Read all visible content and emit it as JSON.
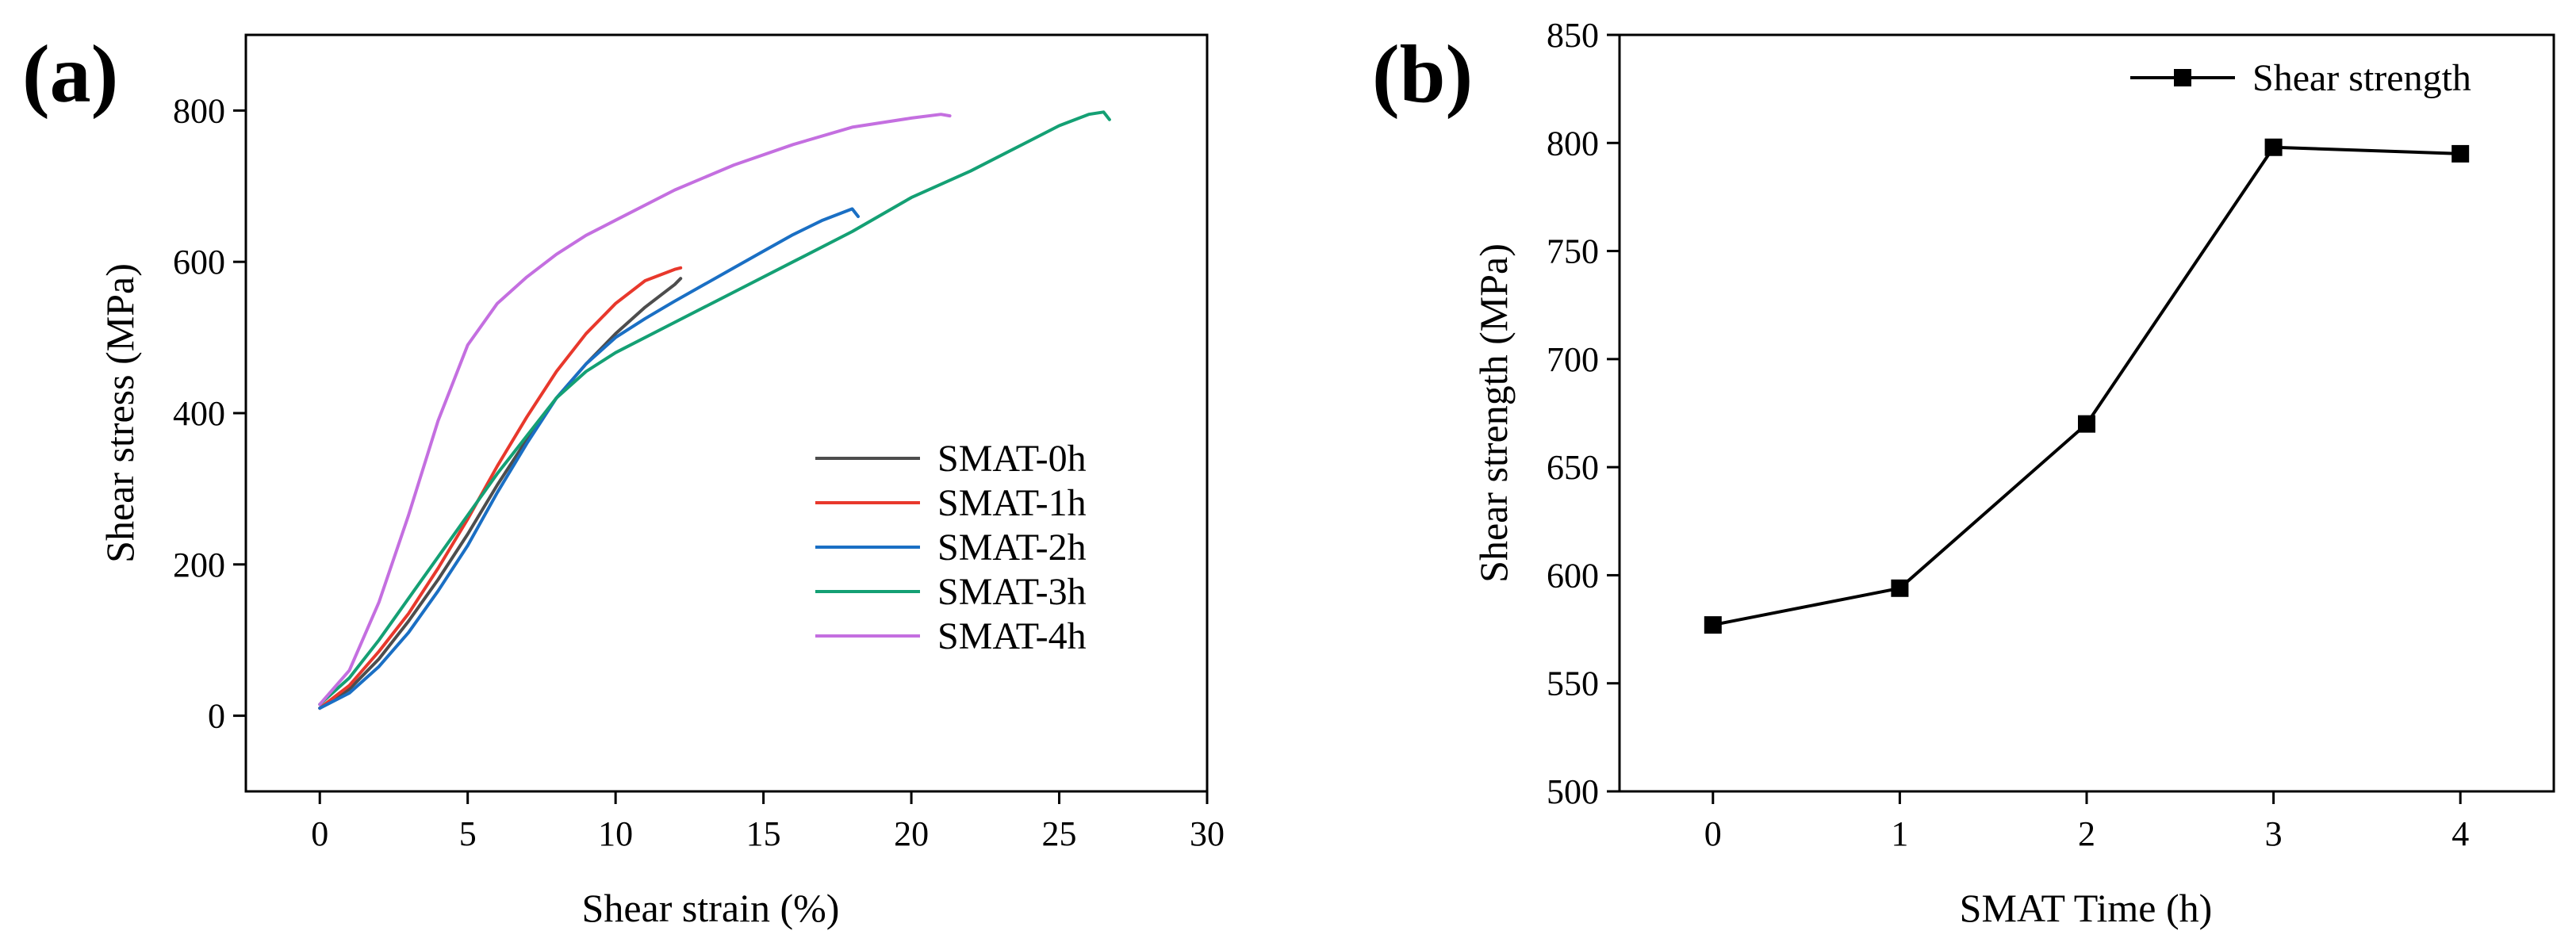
{
  "chart_data": [
    {
      "panel_label": "(a)",
      "type": "line",
      "title": "",
      "xlabel": "Shear strain (%)",
      "ylabel": "Shear stress (MPa)",
      "xlim": [
        -2.5,
        30
      ],
      "ylim": [
        -100,
        900
      ],
      "xticks": [
        0,
        5,
        10,
        15,
        20,
        25,
        30
      ],
      "yticks": [
        0,
        200,
        400,
        600,
        800
      ],
      "grid": false,
      "legend_position": "lower-right",
      "series": [
        {
          "name": "SMAT-0h",
          "color": "#4d4d4d",
          "x": [
            0,
            1,
            2,
            3,
            4,
            5,
            6,
            7,
            8,
            9,
            10,
            11,
            12,
            12.2
          ],
          "y": [
            10,
            35,
            75,
            125,
            180,
            240,
            305,
            365,
            420,
            465,
            505,
            540,
            570,
            578
          ]
        },
        {
          "name": "SMAT-1h",
          "color": "#e8382c",
          "x": [
            0,
            1,
            2,
            3,
            4,
            5,
            6,
            7,
            8,
            9,
            10,
            11,
            12,
            12.2
          ],
          "y": [
            10,
            40,
            85,
            135,
            195,
            260,
            330,
            395,
            455,
            505,
            545,
            575,
            590,
            592
          ]
        },
        {
          "name": "SMAT-2h",
          "color": "#1a6fc4",
          "x": [
            0,
            1,
            2,
            3,
            4,
            5,
            6,
            7,
            8,
            9,
            10,
            11,
            12,
            13,
            14,
            15,
            16,
            17,
            18,
            18.2
          ],
          "y": [
            10,
            30,
            65,
            110,
            165,
            225,
            295,
            360,
            420,
            465,
            500,
            525,
            548,
            570,
            592,
            614,
            636,
            655,
            670,
            660
          ]
        },
        {
          "name": "SMAT-3h",
          "color": "#14a074",
          "x": [
            0,
            1,
            2,
            3,
            4,
            5,
            6,
            7,
            8,
            9,
            10,
            12,
            14,
            16,
            18,
            20,
            22,
            24,
            25,
            26,
            26.5,
            26.7
          ],
          "y": [
            15,
            50,
            100,
            155,
            210,
            265,
            320,
            370,
            420,
            455,
            480,
            520,
            560,
            600,
            640,
            685,
            720,
            760,
            780,
            795,
            798,
            788
          ]
        },
        {
          "name": "SMAT-4h",
          "color": "#c46fe0",
          "x": [
            0,
            1,
            2,
            3,
            4,
            5,
            6,
            7,
            8,
            9,
            10,
            12,
            14,
            16,
            18,
            20,
            21,
            21.3
          ],
          "y": [
            15,
            60,
            150,
            265,
            390,
            490,
            545,
            580,
            610,
            635,
            655,
            695,
            728,
            755,
            778,
            790,
            795,
            793
          ]
        }
      ]
    },
    {
      "panel_label": "(b)",
      "type": "line",
      "title": "",
      "xlabel": "SMAT Time (h)",
      "ylabel": "Shear strength (MPa)",
      "xlim": [
        -0.5,
        4.5
      ],
      "ylim": [
        500,
        850
      ],
      "xticks": [
        0,
        1,
        2,
        3,
        4
      ],
      "yticks": [
        500,
        550,
        600,
        650,
        700,
        750,
        800,
        850
      ],
      "grid": false,
      "legend_position": "top-right",
      "series": [
        {
          "name": "Shear strength",
          "color": "#000000",
          "marker": "square",
          "x": [
            0,
            1,
            2,
            3,
            4
          ],
          "y": [
            577,
            594,
            670,
            798,
            795
          ]
        }
      ]
    }
  ]
}
